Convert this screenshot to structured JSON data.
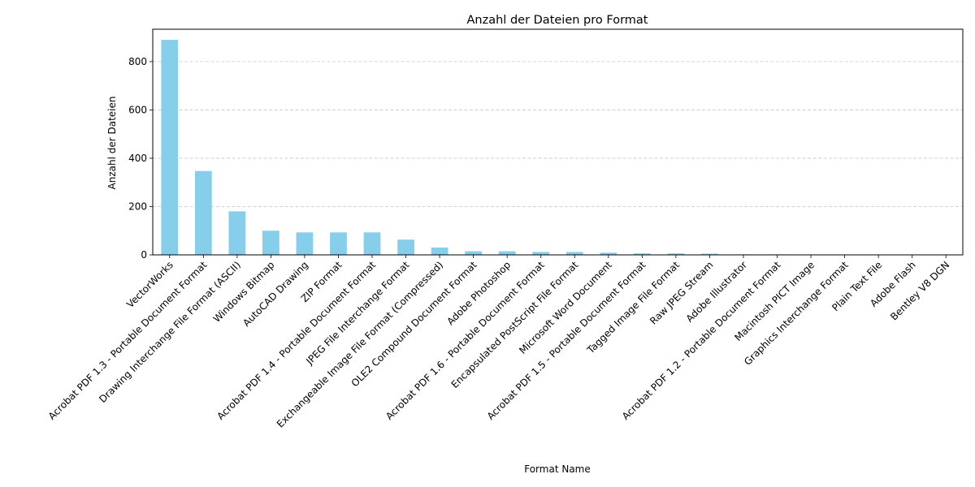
{
  "chart_data": {
    "type": "bar",
    "title": "Anzahl der Dateien pro Format",
    "xlabel": "Format Name",
    "ylabel": "Anzahl der Dateien",
    "categories": [
      "VectorWorks",
      "Acrobat PDF 1.3 - Portable Document Format",
      "Drawing Interchange File Format (ASCII)",
      "Windows Bitmap",
      "AutoCAD Drawing",
      "ZIP Format",
      "Acrobat PDF 1.4 - Portable Document Format",
      "JPEG File Interchange Format",
      "Exchangeable Image File Format (Compressed)",
      "OLE2 Compound Document Format",
      "Adobe Photoshop",
      "Acrobat PDF 1.6 - Portable Document Format",
      "Encapsulated PostScript File Format",
      "Microsoft Word Document",
      "Acrobat PDF 1.5 - Portable Document Format",
      "Tagged Image File Format",
      "Raw JPEG Stream",
      "Adobe Illustrator",
      "Acrobat PDF 1.2 - Portable Document Format",
      "Macintosh PICT Image",
      "Graphics Interchange Format",
      "Plain Text File",
      "Adobe Flash",
      "Bentley V8 DGN"
    ],
    "values": [
      890,
      347,
      180,
      100,
      93,
      93,
      93,
      63,
      30,
      15,
      15,
      12,
      12,
      9,
      6,
      6,
      5,
      2,
      2,
      1,
      1,
      1,
      1,
      1
    ],
    "ylim": [
      0,
      934
    ],
    "yticks": [
      0,
      200,
      400,
      600,
      800
    ],
    "grid": "y-dashed",
    "bar_color": "#87ceeb"
  }
}
